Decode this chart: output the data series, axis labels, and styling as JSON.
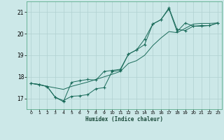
{
  "title": "",
  "xlabel": "Humidex (Indice chaleur)",
  "ylabel": "",
  "bg_color": "#cce8e8",
  "line_color": "#1a6b5a",
  "grid_color": "#b0d0d0",
  "xlim": [
    -0.5,
    23.5
  ],
  "ylim": [
    16.5,
    21.5
  ],
  "xticks": [
    0,
    1,
    2,
    3,
    4,
    5,
    6,
    7,
    8,
    9,
    10,
    11,
    12,
    13,
    14,
    15,
    16,
    17,
    18,
    19,
    20,
    21,
    22,
    23
  ],
  "yticks": [
    17,
    18,
    19,
    20,
    21
  ],
  "line1_x": [
    0,
    1,
    2,
    3,
    4,
    5,
    6,
    7,
    8,
    9,
    10,
    11,
    12,
    13,
    14,
    15,
    16,
    17,
    18,
    19,
    20,
    21,
    22,
    23
  ],
  "line1_y": [
    17.7,
    17.65,
    17.55,
    17.05,
    16.85,
    17.75,
    17.82,
    17.88,
    17.85,
    18.25,
    18.3,
    18.35,
    19.05,
    19.25,
    19.75,
    20.45,
    20.65,
    21.15,
    20.1,
    20.5,
    20.35,
    20.35,
    20.38,
    20.5
  ],
  "line2_x": [
    0,
    1,
    2,
    3,
    4,
    5,
    6,
    7,
    8,
    9,
    10,
    11,
    12,
    13,
    14,
    15,
    16,
    17,
    18,
    19,
    20,
    21,
    22,
    23
  ],
  "line2_y": [
    17.7,
    17.65,
    17.55,
    17.05,
    16.9,
    17.1,
    17.12,
    17.18,
    17.45,
    17.5,
    18.25,
    18.3,
    19.05,
    19.25,
    19.5,
    20.45,
    20.65,
    21.2,
    20.2,
    20.15,
    20.35,
    20.38,
    20.38,
    20.5
  ],
  "line3_x": [
    0,
    1,
    2,
    3,
    4,
    5,
    6,
    7,
    8,
    9,
    10,
    11,
    12,
    13,
    14,
    15,
    16,
    17,
    18,
    19,
    20,
    21,
    22,
    23
  ],
  "line3_y": [
    17.7,
    17.63,
    17.56,
    17.49,
    17.42,
    17.56,
    17.66,
    17.76,
    17.88,
    18.0,
    18.12,
    18.25,
    18.62,
    18.75,
    19.0,
    19.45,
    19.8,
    20.1,
    20.05,
    20.25,
    20.45,
    20.48,
    20.48,
    20.5
  ]
}
